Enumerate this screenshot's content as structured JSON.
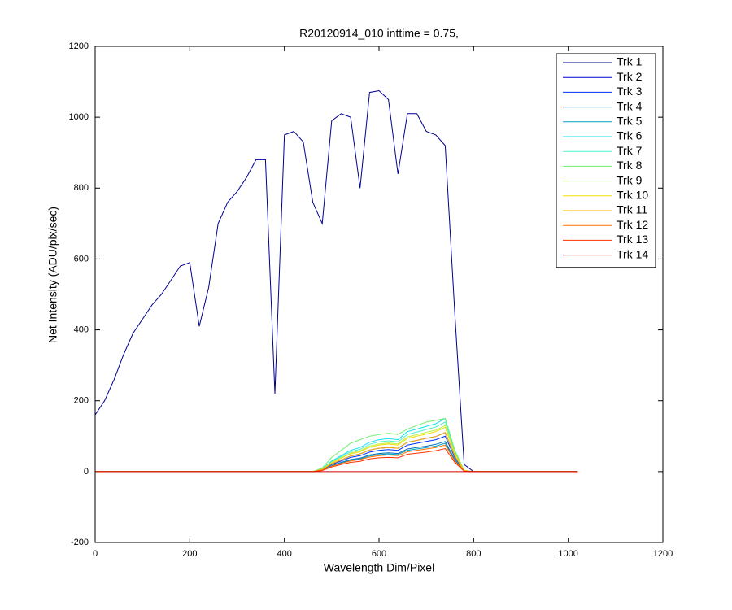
{
  "chart_data": {
    "type": "line",
    "title": "R20120914_010 inttime = 0.75,",
    "x_label": "Wavelength Dim/Pixel",
    "y_label": "Net Intensity (ADU/pix/sec)",
    "xlim": [
      0,
      1200
    ],
    "xticks": [
      0,
      200,
      400,
      600,
      800,
      1000,
      1200
    ],
    "ylim": [
      -200,
      1200
    ],
    "yticks": [
      -200,
      0,
      200,
      400,
      600,
      800,
      1000,
      1200
    ],
    "grid": false,
    "legend": "top-right",
    "x": [
      0,
      20,
      40,
      60,
      80,
      100,
      120,
      140,
      160,
      180,
      200,
      220,
      240,
      260,
      280,
      300,
      320,
      340,
      360,
      380,
      400,
      420,
      440,
      460,
      480,
      500,
      520,
      540,
      560,
      580,
      600,
      620,
      640,
      660,
      680,
      700,
      720,
      740,
      760,
      780,
      800,
      820,
      840,
      860,
      880,
      900,
      920,
      940,
      960,
      980,
      1000,
      1020
    ],
    "series": [
      {
        "name": "Trk 1",
        "color": "#000090",
        "values": [
          160,
          200,
          260,
          330,
          390,
          430,
          470,
          500,
          540,
          580,
          590,
          410,
          520,
          700,
          760,
          790,
          830,
          880,
          880,
          220,
          950,
          960,
          930,
          760,
          700,
          990,
          1010,
          1000,
          800,
          1070,
          1075,
          1050,
          840,
          1010,
          1010,
          960,
          950,
          920,
          450,
          20,
          0,
          0,
          0,
          0,
          0,
          0,
          0,
          0,
          0,
          0,
          0,
          0
        ]
      },
      {
        "name": "Trk 2",
        "color": "#0000d0",
        "values": [
          0,
          0,
          0,
          0,
          0,
          0,
          0,
          0,
          0,
          0,
          0,
          0,
          0,
          0,
          0,
          0,
          0,
          0,
          0,
          0,
          0,
          0,
          0,
          0,
          6,
          22,
          33,
          44,
          50,
          61,
          66,
          68,
          66,
          83,
          88,
          94,
          99,
          110,
          44,
          2,
          0,
          0,
          0,
          0,
          0,
          0,
          0,
          0,
          0,
          0,
          0,
          0
        ]
      },
      {
        "name": "Trk 3",
        "color": "#0030ff",
        "values": [
          0,
          0,
          0,
          0,
          0,
          0,
          0,
          0,
          0,
          0,
          0,
          0,
          0,
          0,
          0,
          0,
          0,
          0,
          0,
          0,
          0,
          0,
          0,
          0,
          5,
          20,
          30,
          40,
          45,
          55,
          60,
          62,
          60,
          75,
          80,
          85,
          90,
          100,
          40,
          2,
          0,
          0,
          0,
          0,
          0,
          0,
          0,
          0,
          0,
          0,
          0,
          0
        ]
      },
      {
        "name": "Trk 4",
        "color": "#0070c0",
        "values": [
          0,
          0,
          0,
          0,
          0,
          0,
          0,
          0,
          0,
          0,
          0,
          0,
          0,
          0,
          0,
          0,
          0,
          0,
          0,
          0,
          0,
          0,
          0,
          0,
          4,
          17,
          26,
          34,
          38,
          47,
          51,
          53,
          51,
          64,
          68,
          72,
          77,
          85,
          34,
          2,
          0,
          0,
          0,
          0,
          0,
          0,
          0,
          0,
          0,
          0,
          0,
          0
        ]
      },
      {
        "name": "Trk 5",
        "color": "#00a0c0",
        "values": [
          0,
          0,
          0,
          0,
          0,
          0,
          0,
          0,
          0,
          0,
          0,
          0,
          0,
          0,
          0,
          0,
          0,
          0,
          0,
          0,
          0,
          0,
          0,
          0,
          4,
          16,
          24,
          32,
          36,
          44,
          48,
          50,
          48,
          60,
          64,
          68,
          72,
          80,
          32,
          2,
          0,
          0,
          0,
          0,
          0,
          0,
          0,
          0,
          0,
          0,
          0,
          0
        ]
      },
      {
        "name": "Trk 6",
        "color": "#10e0ef",
        "values": [
          0,
          0,
          0,
          0,
          0,
          0,
          0,
          0,
          0,
          0,
          0,
          0,
          0,
          0,
          0,
          0,
          0,
          0,
          0,
          0,
          0,
          0,
          0,
          0,
          8,
          30,
          45,
          60,
          68,
          83,
          90,
          93,
          90,
          113,
          120,
          128,
          135,
          150,
          60,
          3,
          0,
          0,
          0,
          0,
          0,
          0,
          0,
          0,
          0,
          0,
          0,
          0
        ]
      },
      {
        "name": "Trk 7",
        "color": "#50f0cf",
        "values": [
          0,
          0,
          0,
          0,
          0,
          0,
          0,
          0,
          0,
          0,
          0,
          0,
          0,
          0,
          0,
          0,
          0,
          0,
          0,
          0,
          0,
          0,
          0,
          0,
          7,
          28,
          42,
          56,
          63,
          77,
          84,
          87,
          84,
          105,
          112,
          119,
          126,
          140,
          56,
          3,
          0,
          0,
          0,
          0,
          0,
          0,
          0,
          0,
          0,
          0,
          0,
          0
        ]
      },
      {
        "name": "Trk 8",
        "color": "#70f070",
        "values": [
          0,
          0,
          0,
          0,
          0,
          0,
          0,
          0,
          0,
          0,
          0,
          0,
          0,
          0,
          0,
          0,
          0,
          0,
          0,
          0,
          0,
          0,
          0,
          0,
          10,
          40,
          60,
          80,
          90,
          100,
          105,
          108,
          105,
          120,
          130,
          140,
          145,
          150,
          60,
          3,
          0,
          0,
          0,
          0,
          0,
          0,
          0,
          0,
          0,
          0,
          0,
          0
        ]
      },
      {
        "name": "Trk 9",
        "color": "#c0f040",
        "values": [
          0,
          0,
          0,
          0,
          0,
          0,
          0,
          0,
          0,
          0,
          0,
          0,
          0,
          0,
          0,
          0,
          0,
          0,
          0,
          0,
          0,
          0,
          0,
          0,
          7,
          26,
          39,
          52,
          59,
          72,
          78,
          81,
          78,
          98,
          104,
          111,
          117,
          130,
          52,
          3,
          0,
          0,
          0,
          0,
          0,
          0,
          0,
          0,
          0,
          0,
          0,
          0
        ]
      },
      {
        "name": "Trk 10",
        "color": "#f0e000",
        "values": [
          0,
          0,
          0,
          0,
          0,
          0,
          0,
          0,
          0,
          0,
          0,
          0,
          0,
          0,
          0,
          0,
          0,
          0,
          0,
          0,
          0,
          0,
          0,
          0,
          6,
          25,
          38,
          50,
          56,
          69,
          75,
          78,
          75,
          94,
          100,
          106,
          113,
          125,
          50,
          3,
          0,
          0,
          0,
          0,
          0,
          0,
          0,
          0,
          0,
          0,
          0,
          0
        ]
      },
      {
        "name": "Trk 11",
        "color": "#ffb000",
        "values": [
          0,
          0,
          0,
          0,
          0,
          0,
          0,
          0,
          0,
          0,
          0,
          0,
          0,
          0,
          0,
          0,
          0,
          0,
          0,
          0,
          0,
          0,
          0,
          0,
          6,
          22,
          33,
          44,
          50,
          61,
          66,
          68,
          66,
          83,
          88,
          94,
          99,
          110,
          44,
          2,
          0,
          0,
          0,
          0,
          0,
          0,
          0,
          0,
          0,
          0,
          0,
          0
        ]
      },
      {
        "name": "Trk 12",
        "color": "#ff7000",
        "values": [
          0,
          0,
          0,
          0,
          0,
          0,
          0,
          0,
          0,
          0,
          0,
          0,
          0,
          0,
          0,
          0,
          0,
          0,
          0,
          0,
          0,
          0,
          0,
          0,
          4,
          15,
          23,
          30,
          34,
          41,
          45,
          47,
          45,
          56,
          60,
          64,
          68,
          75,
          30,
          2,
          0,
          0,
          0,
          0,
          0,
          0,
          0,
          0,
          0,
          0,
          0,
          0
        ]
      },
      {
        "name": "Trk 13",
        "color": "#ff3000",
        "values": [
          0,
          0,
          0,
          0,
          0,
          0,
          0,
          0,
          0,
          0,
          0,
          0,
          0,
          0,
          0,
          0,
          0,
          0,
          0,
          0,
          0,
          0,
          0,
          0,
          3,
          13,
          20,
          26,
          29,
          36,
          39,
          40,
          39,
          49,
          52,
          55,
          59,
          65,
          26,
          1,
          0,
          0,
          0,
          0,
          0,
          0,
          0,
          0,
          0,
          0,
          0,
          0
        ]
      },
      {
        "name": "Trk 14",
        "color": "#d00000",
        "values": [
          0,
          0,
          0,
          0,
          0,
          0,
          0,
          0,
          0,
          0,
          0,
          0,
          0,
          0,
          0,
          0,
          0,
          0,
          0,
          0,
          0,
          0,
          0,
          0,
          0,
          0,
          0,
          0,
          0,
          0,
          0,
          0,
          0,
          0,
          0,
          0,
          0,
          0,
          0,
          0,
          0,
          0,
          0,
          0,
          0,
          0,
          0,
          0,
          0,
          0,
          0,
          0
        ]
      }
    ]
  }
}
